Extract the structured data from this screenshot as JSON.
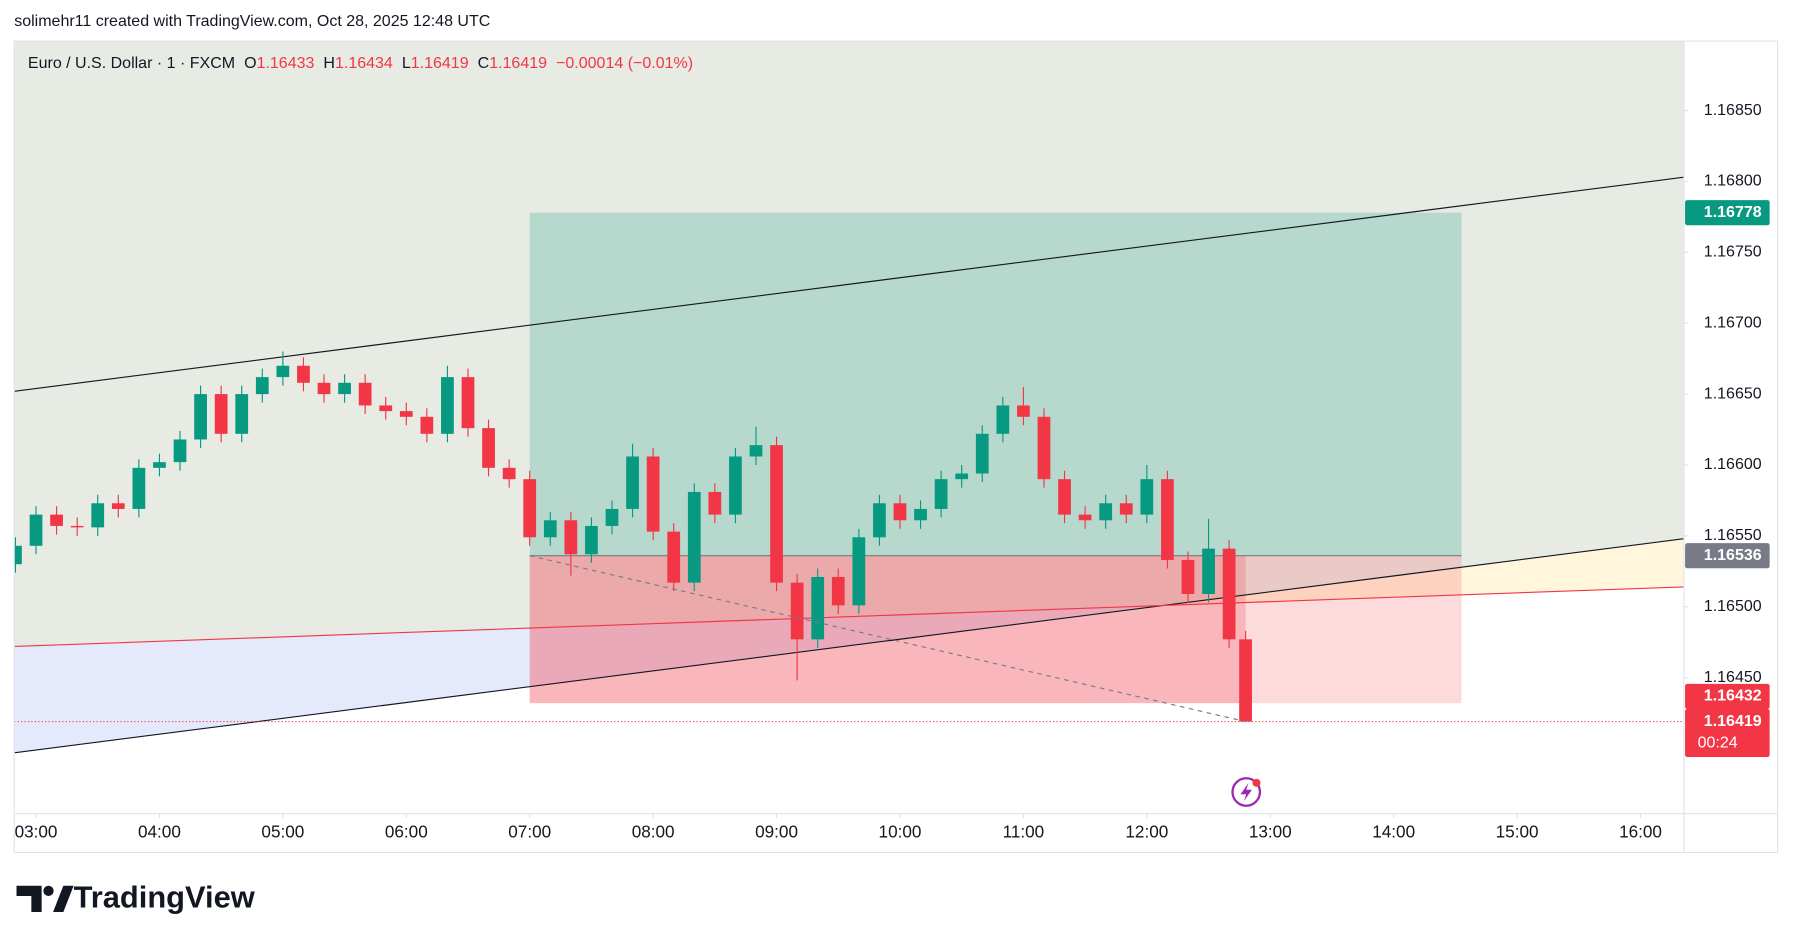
{
  "header": "solimehr11 created with TradingView.com, Oct 28, 2025 12:48 UTC",
  "brand": "TradingView",
  "chart_data": {
    "type": "candlestick",
    "symbol": "Euro / U.S. Dollar · 1 · FXCM",
    "ohlc": [
      {
        "label": "O",
        "value": 1.16433
      },
      {
        "label": "H",
        "value": 1.16434
      },
      {
        "label": "L",
        "value": 1.16419
      },
      {
        "label": "C",
        "value": 1.16419
      }
    ],
    "change": "−0.00014 (−0.01%)",
    "up_color": "#089981",
    "down_color": "#f23645",
    "x": [
      170,
      180,
      190,
      200,
      210,
      220,
      230,
      240,
      250,
      260,
      270,
      280,
      290,
      300,
      310,
      320,
      330,
      340,
      350,
      360,
      370,
      380,
      390,
      400,
      410,
      420,
      430,
      440,
      450,
      460,
      470,
      480,
      490,
      500,
      510,
      520,
      530,
      540,
      550,
      560,
      570,
      580,
      590,
      600,
      610,
      620,
      630,
      640,
      650,
      660,
      670,
      680,
      690,
      700,
      710,
      720,
      730,
      740,
      750,
      760,
      768
    ],
    "open": [
      1.1653,
      1.16543,
      1.16565,
      1.16557,
      1.16556,
      1.16573,
      1.16569,
      1.16598,
      1.16602,
      1.16618,
      1.1665,
      1.16622,
      1.1665,
      1.16662,
      1.1667,
      1.16658,
      1.1665,
      1.16658,
      1.16642,
      1.16638,
      1.16634,
      1.16622,
      1.16662,
      1.16626,
      1.16598,
      1.1659,
      1.16549,
      1.16561,
      1.16537,
      1.16557,
      1.16569,
      1.16606,
      1.16553,
      1.16517,
      1.16581,
      1.16565,
      1.16606,
      1.16614,
      1.16517,
      1.16477,
      1.16521,
      1.16501,
      1.16549,
      1.16573,
      1.16561,
      1.16569,
      1.1659,
      1.16594,
      1.16622,
      1.16642,
      1.16634,
      1.1659,
      1.16565,
      1.16561,
      1.16573,
      1.16565,
      1.1659,
      1.16533,
      1.16509,
      1.16541,
      1.16477
    ],
    "high": [
      1.16549,
      1.16571,
      1.16571,
      1.16563,
      1.16579,
      1.16579,
      1.16604,
      1.16608,
      1.16624,
      1.16656,
      1.16656,
      1.16656,
      1.16668,
      1.1668,
      1.16676,
      1.16664,
      1.16664,
      1.16664,
      1.16648,
      1.16644,
      1.1664,
      1.1667,
      1.16668,
      1.16632,
      1.16604,
      1.16596,
      1.16567,
      1.16567,
      1.16563,
      1.16575,
      1.16615,
      1.16612,
      1.16559,
      1.16587,
      1.16587,
      1.16612,
      1.16627,
      1.1662,
      1.16523,
      1.16527,
      1.16527,
      1.16555,
      1.16579,
      1.16579,
      1.16575,
      1.16596,
      1.166,
      1.16628,
      1.16648,
      1.16655,
      1.1664,
      1.16596,
      1.16571,
      1.16579,
      1.16579,
      1.166,
      1.16596,
      1.16539,
      1.16562,
      1.16547,
      1.16483
    ],
    "low": [
      1.16524,
      1.16537,
      1.16551,
      1.1655,
      1.1655,
      1.16563,
      1.16563,
      1.16592,
      1.16596,
      1.16612,
      1.16616,
      1.16616,
      1.16644,
      1.16656,
      1.16652,
      1.16644,
      1.16644,
      1.16636,
      1.16632,
      1.16628,
      1.16616,
      1.16616,
      1.1662,
      1.16592,
      1.16584,
      1.16543,
      1.16543,
      1.16522,
      1.16531,
      1.16551,
      1.16563,
      1.16547,
      1.16511,
      1.16511,
      1.16559,
      1.16559,
      1.166,
      1.16511,
      1.16448,
      1.16471,
      1.16495,
      1.16495,
      1.16543,
      1.16555,
      1.16555,
      1.16563,
      1.16584,
      1.16588,
      1.16616,
      1.16628,
      1.16584,
      1.16559,
      1.16555,
      1.16555,
      1.16559,
      1.16559,
      1.16527,
      1.16503,
      1.16503,
      1.16471,
      1.16419
    ],
    "close": [
      1.16543,
      1.16565,
      1.16557,
      1.16556,
      1.16573,
      1.16569,
      1.16598,
      1.16602,
      1.16618,
      1.1665,
      1.16622,
      1.1665,
      1.16662,
      1.1667,
      1.16658,
      1.1665,
      1.16658,
      1.16642,
      1.16638,
      1.16634,
      1.16622,
      1.16662,
      1.16626,
      1.16598,
      1.1659,
      1.16549,
      1.16561,
      1.16537,
      1.16557,
      1.16569,
      1.16606,
      1.16553,
      1.16517,
      1.16581,
      1.16565,
      1.16606,
      1.16614,
      1.16517,
      1.16477,
      1.16521,
      1.16501,
      1.16549,
      1.16573,
      1.16561,
      1.16569,
      1.1659,
      1.16594,
      1.16622,
      1.16642,
      1.16634,
      1.1659,
      1.16565,
      1.16561,
      1.16573,
      1.16565,
      1.1659,
      1.16533,
      1.16509,
      1.16541,
      1.16477,
      1.16419
    ],
    "xlim": [
      169.4,
      981.1
    ],
    "ylim": [
      1.16354,
      1.16899
    ],
    "xticks": [
      {
        "value": 180,
        "label": "03:00"
      },
      {
        "value": 240,
        "label": "04:00"
      },
      {
        "value": 300,
        "label": "05:00"
      },
      {
        "value": 360,
        "label": "06:00"
      },
      {
        "value": 420,
        "label": "07:00"
      },
      {
        "value": 480,
        "label": "08:00"
      },
      {
        "value": 540,
        "label": "09:00"
      },
      {
        "value": 600,
        "label": "10:00"
      },
      {
        "value": 660,
        "label": "11:00"
      },
      {
        "value": 720,
        "label": "12:00"
      },
      {
        "value": 780,
        "label": "13:00"
      },
      {
        "value": 840,
        "label": "14:00"
      },
      {
        "value": 900,
        "label": "15:00"
      },
      {
        "value": 960,
        "label": "16:00"
      }
    ],
    "yticks": [
      {
        "value": 1.1645,
        "label": "1.16450"
      },
      {
        "value": 1.165,
        "label": "1.16500"
      },
      {
        "value": 1.1655,
        "label": "1.16550"
      },
      {
        "value": 1.166,
        "label": "1.16600"
      },
      {
        "value": 1.1665,
        "label": "1.16650"
      },
      {
        "value": 1.167,
        "label": "1.16700"
      },
      {
        "value": 1.1675,
        "label": "1.16750"
      },
      {
        "value": 1.168,
        "label": "1.16800"
      },
      {
        "value": 1.1685,
        "label": "1.16850"
      }
    ],
    "trendlines": [
      {
        "color": "#131722",
        "x": [
          169.4,
          981.1
        ],
        "y": [
          1.16652,
          1.16803
        ]
      },
      {
        "color": "#131722",
        "x": [
          169.4,
          981.1
        ],
        "y": [
          1.16397,
          1.16548
        ]
      },
      {
        "color": "#f23645",
        "x": [
          169.4,
          981.1
        ],
        "y": [
          1.16472,
          1.16514
        ]
      }
    ],
    "long_position": {
      "start": 420,
      "end": 873,
      "now": 768,
      "entry": 1.16536,
      "target": 1.16778,
      "stop": 1.16432,
      "exit": 1.16419
    },
    "price_labels": [
      {
        "value": 1.16778,
        "color": "#089981"
      },
      {
        "value": 1.16536,
        "color": "#787b86"
      },
      {
        "value": 1.16432,
        "color": "#f23645"
      }
    ],
    "last_price": {
      "value": 1.16419,
      "color": "#f23645",
      "countdown": "00:24"
    }
  }
}
